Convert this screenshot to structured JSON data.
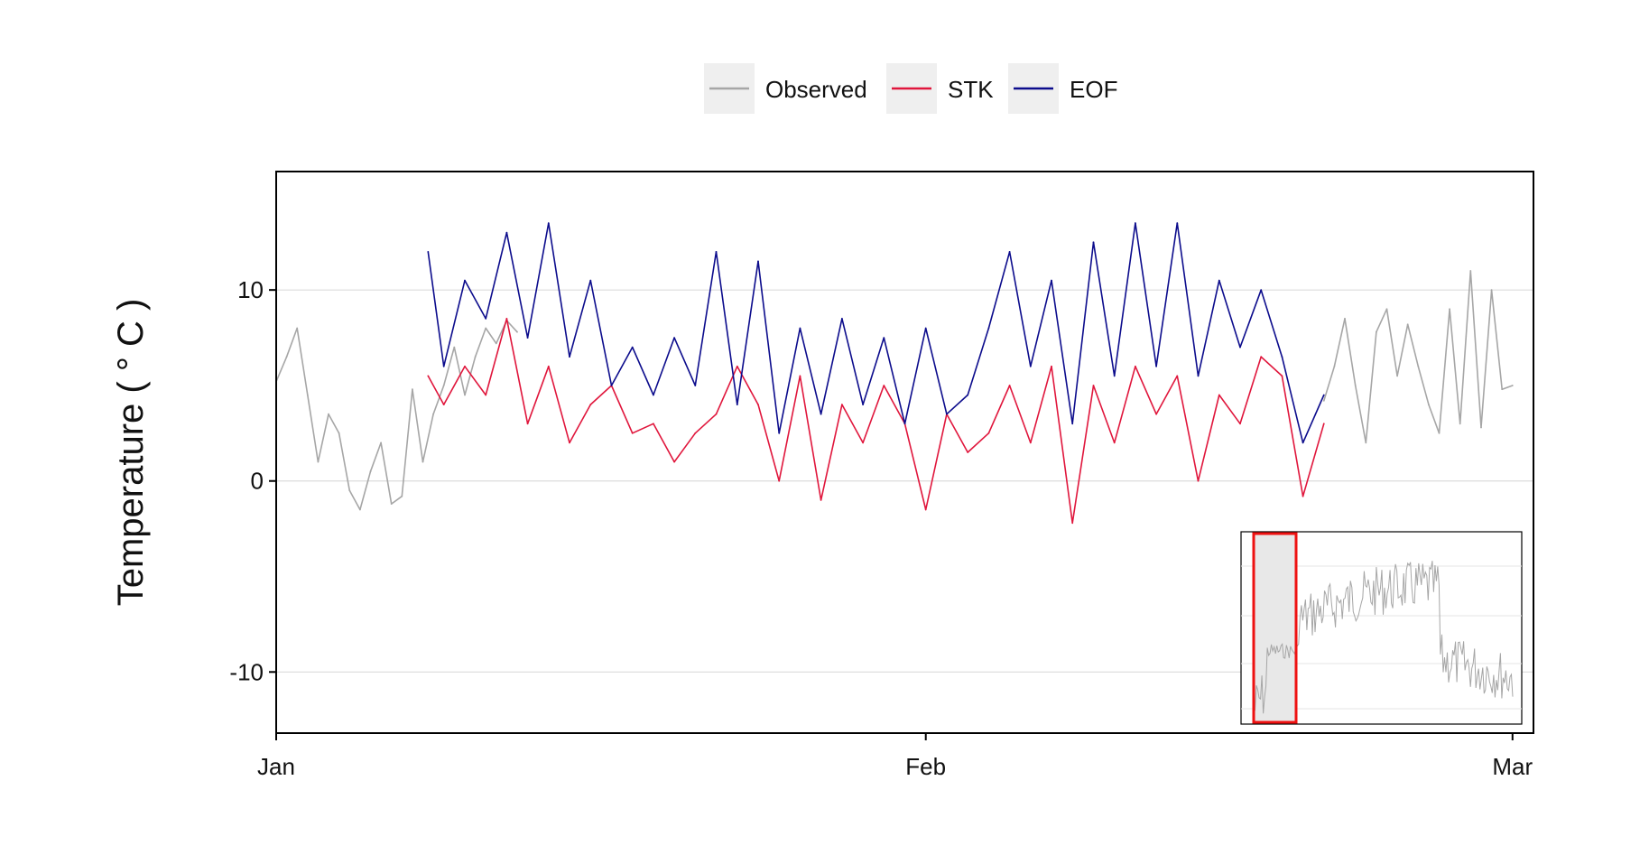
{
  "chart_data": {
    "type": "line",
    "title": "",
    "xlabel": "",
    "ylabel": "Temperature ( ° C )",
    "xlim": [
      "2019-01-01",
      "2019-03-02"
    ],
    "ylim": [
      -13.2,
      16.2
    ],
    "x_ticks": [
      {
        "date": "2019-01-01",
        "label": "Jan"
      },
      {
        "date": "2019-02-01",
        "label": "Feb"
      },
      {
        "date": "2019-03-01",
        "label": "Mar"
      }
    ],
    "y_ticks": [
      -10,
      0,
      10
    ],
    "grid": "horizontal",
    "legend": {
      "position": "top",
      "entries": [
        "Observed",
        "STK",
        "EOF"
      ]
    },
    "colors": {
      "Observed": "#a6a6a6",
      "STK": "#e0163c",
      "EOF": "#0c0c8c"
    },
    "series": [
      {
        "name": "Observed",
        "x": [
          "2019-01-01",
          "2019-01-01T12:00",
          "2019-01-02",
          "2019-01-02T12:00",
          "2019-01-03",
          "2019-01-03T12:00",
          "2019-01-04",
          "2019-01-04T12:00",
          "2019-01-05",
          "2019-01-05T12:00",
          "2019-01-06",
          "2019-01-06T12:00",
          "2019-01-07",
          "2019-01-07T12:00",
          "2019-01-08",
          "2019-01-08T12:00",
          "2019-01-09",
          "2019-01-09T12:00",
          "2019-01-10",
          "2019-01-10T12:00",
          "2019-01-11",
          "2019-01-11T12:00",
          "2019-01-12",
          "2019-01-12T12:00",
          "2019-02-20",
          "2019-02-20T12:00",
          "2019-02-21",
          "2019-02-21T12:00",
          "2019-02-22",
          "2019-02-22T12:00",
          "2019-02-23",
          "2019-02-23T12:00",
          "2019-02-24",
          "2019-02-24T12:00",
          "2019-02-25",
          "2019-02-25T12:00",
          "2019-02-26",
          "2019-02-26T12:00",
          "2019-02-27",
          "2019-02-27T12:00",
          "2019-02-28",
          "2019-02-28T12:00",
          "2019-03-01"
        ],
        "y": [
          5.2,
          6.5,
          8.0,
          4.5,
          1.0,
          3.5,
          2.5,
          -0.5,
          -1.5,
          0.5,
          2.0,
          -1.2,
          -0.8,
          4.8,
          1.0,
          3.5,
          5.0,
          7.0,
          4.5,
          6.5,
          8.0,
          7.2,
          8.4,
          7.8,
          4.2,
          6.0,
          8.5,
          5.0,
          2.0,
          7.8,
          9.0,
          5.5,
          8.2,
          6.0,
          4.0,
          2.5,
          9.0,
          3.0,
          11.0,
          2.8,
          10.0,
          4.8,
          5.0
        ]
      },
      {
        "name": "STK",
        "x": [
          "2019-01-08T06:00",
          "2019-01-09",
          "2019-01-10",
          "2019-01-11",
          "2019-01-12",
          "2019-01-13",
          "2019-01-14",
          "2019-01-15",
          "2019-01-16",
          "2019-01-17",
          "2019-01-18",
          "2019-01-19",
          "2019-01-20",
          "2019-01-21",
          "2019-01-22",
          "2019-01-23",
          "2019-01-24",
          "2019-01-25",
          "2019-01-26",
          "2019-01-27",
          "2019-01-28",
          "2019-01-29",
          "2019-01-30",
          "2019-01-31",
          "2019-02-01",
          "2019-02-02",
          "2019-02-03",
          "2019-02-04",
          "2019-02-05",
          "2019-02-06",
          "2019-02-07",
          "2019-02-08",
          "2019-02-09",
          "2019-02-10",
          "2019-02-11",
          "2019-02-12",
          "2019-02-13",
          "2019-02-14",
          "2019-02-15",
          "2019-02-16",
          "2019-02-17",
          "2019-02-18",
          "2019-02-19",
          "2019-02-20"
        ],
        "y": [
          5.5,
          4.0,
          6.0,
          4.5,
          8.5,
          3.0,
          6.0,
          2.0,
          4.0,
          5.0,
          2.5,
          3.0,
          1.0,
          2.5,
          3.5,
          6.0,
          4.0,
          0.0,
          5.5,
          -1.0,
          4.0,
          2.0,
          5.0,
          3.0,
          -1.5,
          3.5,
          1.5,
          2.5,
          5.0,
          2.0,
          6.0,
          -2.2,
          5.0,
          2.0,
          6.0,
          3.5,
          5.5,
          0.0,
          4.5,
          3.0,
          6.5,
          5.5,
          -0.8,
          3.0
        ]
      },
      {
        "name": "EOF",
        "x": [
          "2019-01-08T06:00",
          "2019-01-09",
          "2019-01-10",
          "2019-01-11",
          "2019-01-12",
          "2019-01-13",
          "2019-01-14",
          "2019-01-15",
          "2019-01-16",
          "2019-01-17",
          "2019-01-18",
          "2019-01-19",
          "2019-01-20",
          "2019-01-21",
          "2019-01-22",
          "2019-01-23",
          "2019-01-24",
          "2019-01-25",
          "2019-01-26",
          "2019-01-27",
          "2019-01-28",
          "2019-01-29",
          "2019-01-30",
          "2019-01-31",
          "2019-02-01",
          "2019-02-02",
          "2019-02-03",
          "2019-02-04",
          "2019-02-05",
          "2019-02-06",
          "2019-02-07",
          "2019-02-08",
          "2019-02-09",
          "2019-02-10",
          "2019-02-11",
          "2019-02-12",
          "2019-02-13",
          "2019-02-14",
          "2019-02-15",
          "2019-02-16",
          "2019-02-17",
          "2019-02-18",
          "2019-02-19",
          "2019-02-20"
        ],
        "y": [
          12.0,
          6.0,
          10.5,
          8.5,
          13.0,
          7.5,
          13.5,
          6.5,
          10.5,
          5.0,
          7.0,
          4.5,
          7.5,
          5.0,
          12.0,
          4.0,
          11.5,
          2.5,
          8.0,
          3.5,
          8.5,
          4.0,
          7.5,
          3.0,
          8.0,
          3.5,
          4.5,
          8.0,
          12.0,
          6.0,
          10.5,
          3.0,
          12.5,
          5.5,
          13.5,
          6.0,
          13.5,
          5.5,
          10.5,
          7.0,
          10.0,
          6.5,
          2.0,
          4.5
        ]
      }
    ],
    "inset": {
      "series": "Observed",
      "highlight": "Jan–Feb window (red box)"
    }
  }
}
